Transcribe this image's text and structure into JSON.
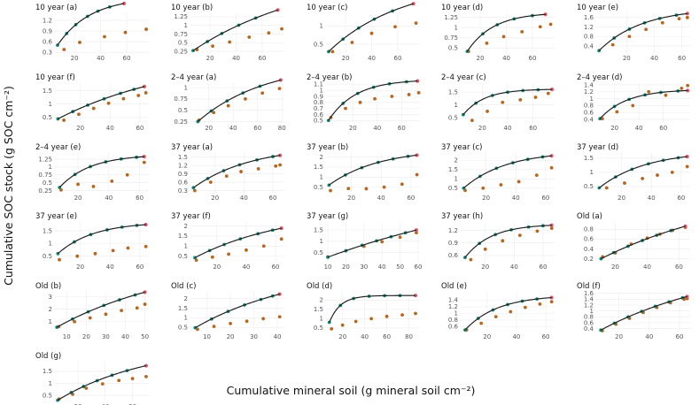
{
  "figure": {
    "ylabel": "Cumulative SOC stock (g SOC  cm⁻²)",
    "xlabel": "Cumulative mineral soil (g mineral soil cm⁻²)"
  },
  "colors": {
    "fitted_line": "#1a1a1a",
    "teal_points": "#138a78",
    "orange_points": "#b8651e",
    "red_endpoint": "#e05a6a",
    "grid": "#ececec"
  },
  "chart_data": [
    {
      "title": "10 year (a)",
      "type": "scatter",
      "xticks": [
        20,
        40,
        60
      ],
      "yticks": [
        0.3,
        0.6,
        0.9,
        1.2
      ],
      "xlim": [
        5,
        77
      ],
      "ylim": [
        0.28,
        1.4
      ],
      "curve": {
        "a": 1.35,
        "b": 0.04,
        "c": 0.5,
        "x0": 7
      },
      "teal_x": [
        7,
        14,
        21,
        30,
        38,
        47,
        58
      ],
      "orange_x": [
        12,
        24,
        43,
        59,
        75
      ],
      "orange_y": [
        0.38,
        0.58,
        0.74,
        0.86,
        0.95
      ]
    },
    {
      "title": "10 year (b)",
      "type": "scatter",
      "xticks": [
        20,
        40,
        60
      ],
      "yticks": [
        0.25,
        0.5,
        0.75,
        1.0,
        1.25
      ],
      "xlim": [
        5,
        77
      ],
      "ylim": [
        0.2,
        1.35
      ],
      "curve": {
        "a": 2.3,
        "b": 0.011,
        "c": 0.27,
        "x0": 7
      },
      "teal_x": [
        7,
        18,
        29,
        42,
        55,
        72
      ],
      "orange_x": [
        10,
        22,
        35,
        50,
        65,
        75
      ],
      "orange_y": [
        0.3,
        0.4,
        0.52,
        0.66,
        0.78,
        0.9
      ]
    },
    {
      "title": "10 year (c)",
      "type": "scatter",
      "xticks": [
        20,
        40,
        60
      ],
      "yticks": [
        0.5,
        1.0
      ],
      "xlim": [
        5,
        77
      ],
      "ylim": [
        0.26,
        1.35
      ],
      "curve": {
        "a": 1.9,
        "b": 0.018,
        "c": 0.3,
        "x0": 7
      },
      "teal_x": [
        7,
        18,
        30,
        42,
        56,
        72
      ],
      "orange_x": [
        10,
        25,
        40,
        58,
        74
      ],
      "orange_y": [
        0.3,
        0.55,
        0.8,
        0.98,
        1.08
      ]
    },
    {
      "title": "10 year (d)",
      "type": "scatter",
      "xticks": [
        20,
        40,
        60
      ],
      "yticks": [
        0.5,
        0.75,
        1.0,
        1.25
      ],
      "xlim": [
        5,
        77
      ],
      "ylim": [
        0.38,
        1.35
      ],
      "curve": {
        "a": 0.95,
        "b": 0.05,
        "c": 0.42,
        "x0": 10
      },
      "teal_x": [
        10,
        22,
        33,
        46,
        60,
        70
      ],
      "orange_x": [
        11,
        25,
        38,
        52,
        66,
        74
      ],
      "orange_y": [
        0.42,
        0.62,
        0.78,
        0.9,
        1.02,
        1.08
      ]
    },
    {
      "title": "10 year (e)",
      "type": "scatter",
      "xticks": [
        20,
        40,
        60
      ],
      "yticks": [
        0.4,
        0.8,
        1.2,
        1.6
      ],
      "xlim": [
        -2,
        66
      ],
      "ylim": [
        0.1,
        1.78
      ],
      "curve": {
        "a": 1.8,
        "b": 0.032,
        "c": 0.2,
        "x0": 0
      },
      "teal_x": [
        0,
        11,
        22,
        33,
        44,
        56,
        64
      ],
      "orange_x": [
        10,
        22,
        34,
        46,
        58,
        64
      ],
      "orange_y": [
        0.45,
        0.8,
        1.1,
        1.38,
        1.55,
        1.6
      ]
    },
    {
      "title": "10 year (f)",
      "type": "scatter",
      "xticks": [
        20,
        40,
        60
      ],
      "yticks": [
        0.5,
        1.0,
        1.5
      ],
      "xlim": [
        3,
        66
      ],
      "ylim": [
        0.3,
        1.78
      ],
      "curve": {
        "a": 2.4,
        "b": 0.012,
        "c": 0.45,
        "x0": 5
      },
      "teal_x": [
        5,
        15,
        25,
        36,
        47,
        56,
        63
      ],
      "orange_x": [
        9,
        19,
        29,
        39,
        49,
        59,
        64
      ],
      "orange_y": [
        0.4,
        0.62,
        0.84,
        1.03,
        1.2,
        1.32,
        1.42
      ]
    },
    {
      "title": "2–4 year (a)",
      "type": "scatter",
      "xticks": [
        20,
        40,
        60,
        80
      ],
      "yticks": [
        0.25,
        0.5,
        0.75,
        1.0
      ],
      "xlim": [
        5,
        82
      ],
      "ylim": [
        0.22,
        1.1
      ],
      "curve": {
        "a": 1.3,
        "b": 0.018,
        "c": 0.25,
        "x0": 11
      },
      "teal_x": [
        11,
        22,
        35,
        48,
        62,
        79
      ],
      "orange_x": [
        12,
        24,
        36,
        50,
        64,
        78
      ],
      "orange_y": [
        0.28,
        0.45,
        0.6,
        0.75,
        0.88,
        0.98
      ]
    },
    {
      "title": "2–4 year (b)",
      "type": "scatter",
      "xticks": [
        20,
        40,
        60
      ],
      "yticks": [
        0.5,
        0.6,
        0.7,
        0.8,
        0.9,
        1.0,
        1.1
      ],
      "xlim": [
        -2,
        75
      ],
      "ylim": [
        0.46,
        1.12
      ],
      "curve": {
        "a": 0.68,
        "b": 0.045,
        "c": 0.5,
        "x0": 0
      },
      "teal_x": [
        0,
        12,
        24,
        37,
        50,
        64,
        73
      ],
      "orange_x": [
        2,
        14,
        26,
        38,
        52,
        66,
        74
      ],
      "orange_y": [
        0.55,
        0.7,
        0.8,
        0.86,
        0.9,
        0.93,
        0.96
      ]
    },
    {
      "title": "2–4 year (c)",
      "type": "scatter",
      "xticks": [
        20,
        40,
        60
      ],
      "yticks": [
        0.5,
        1.0,
        1.5
      ],
      "xlim": [
        3,
        77
      ],
      "ylim": [
        0.3,
        1.85
      ],
      "curve": {
        "a": 1.0,
        "b": 0.06,
        "c": 0.62,
        "x0": 5
      },
      "teal_x": [
        5,
        15,
        28,
        40,
        52,
        64,
        75
      ],
      "orange_x": [
        12,
        24,
        36,
        50,
        62,
        72
      ],
      "orange_y": [
        0.4,
        0.75,
        1.1,
        1.2,
        1.3,
        1.45
      ]
    },
    {
      "title": "2–4 year (d)",
      "type": "scatter",
      "xticks": [
        20,
        40,
        60
      ],
      "yticks": [
        0.4,
        0.6,
        0.8,
        1.0,
        1.2,
        1.4
      ],
      "xlim": [
        5,
        82
      ],
      "ylim": [
        0.3,
        1.45
      ],
      "curve": {
        "a": 0.85,
        "b": 0.045,
        "c": 0.42,
        "x0": 8
      },
      "teal_x": [
        8,
        20,
        32,
        45,
        58,
        72,
        80
      ],
      "orange_x": [
        10,
        22,
        35,
        48,
        62,
        75,
        80
      ],
      "orange_y": [
        0.42,
        0.62,
        0.8,
        1.2,
        1.1,
        1.3,
        1.38
      ]
    },
    {
      "title": "2–4 year (e)",
      "type": "scatter",
      "xticks": [
        20,
        40,
        60
      ],
      "yticks": [
        0.25,
        0.5,
        0.75,
        1.0,
        1.25
      ],
      "xlim": [
        5,
        66
      ],
      "ylim": [
        0.18,
        1.45
      ],
      "curve": {
        "a": 1.05,
        "b": 0.05,
        "c": 0.35,
        "x0": 8
      },
      "teal_x": [
        8,
        18,
        28,
        38,
        48,
        58,
        63
      ],
      "orange_x": [
        9,
        20,
        30,
        42,
        52,
        63
      ],
      "orange_y": [
        0.27,
        0.45,
        0.38,
        0.55,
        0.75,
        1.15
      ]
    },
    {
      "title": "37 year (a)",
      "type": "scatter",
      "xticks": [
        20,
        40,
        60
      ],
      "yticks": [
        0.3,
        0.6,
        0.9,
        1.2,
        1.5
      ],
      "xlim": [
        3,
        68
      ],
      "ylim": [
        0.22,
        1.65
      ],
      "curve": {
        "a": 1.5,
        "b": 0.025,
        "c": 0.4,
        "x0": 5
      },
      "teal_x": [
        5,
        15,
        26,
        37,
        49,
        60,
        65
      ],
      "orange_x": [
        6,
        17,
        28,
        38,
        50,
        62,
        65
      ],
      "orange_y": [
        0.3,
        0.6,
        0.82,
        0.98,
        1.08,
        1.18,
        1.22
      ]
    },
    {
      "title": "37 year (b)",
      "type": "scatter",
      "xticks": [
        20,
        40,
        60
      ],
      "yticks": [
        0.5,
        1.0,
        1.5,
        2.0
      ],
      "xlim": [
        3,
        66
      ],
      "ylim": [
        0.22,
        2.2
      ],
      "curve": {
        "a": 1.8,
        "b": 0.03,
        "c": 0.6,
        "x0": 5
      },
      "teal_x": [
        5,
        16,
        27,
        38,
        48,
        58,
        64
      ],
      "orange_x": [
        6,
        18,
        30,
        42,
        54,
        64
      ],
      "orange_y": [
        0.33,
        0.43,
        0.42,
        0.5,
        0.65,
        1.12
      ]
    },
    {
      "title": "37 year (c)",
      "type": "scatter",
      "xticks": [
        20,
        40,
        60
      ],
      "yticks": [
        0.5,
        1.0,
        1.5,
        2.0
      ],
      "xlim": [
        3,
        66
      ],
      "ylim": [
        0.25,
        2.4
      ],
      "curve": {
        "a": 2.0,
        "b": 0.035,
        "c": 0.5,
        "x0": 5
      },
      "teal_x": [
        5,
        16,
        27,
        38,
        48,
        58,
        64
      ],
      "orange_x": [
        6,
        18,
        30,
        42,
        54,
        64
      ],
      "orange_y": [
        0.38,
        0.5,
        0.68,
        0.85,
        1.2,
        1.6
      ]
    },
    {
      "title": "37 year (d)",
      "type": "scatter",
      "xticks": [
        20,
        40,
        60
      ],
      "yticks": [
        0.5,
        1.0,
        1.5
      ],
      "xlim": [
        3,
        66
      ],
      "ylim": [
        0.28,
        1.68
      ],
      "curve": {
        "a": 1.3,
        "b": 0.032,
        "c": 0.45,
        "x0": 5
      },
      "teal_x": [
        5,
        16,
        27,
        38,
        48,
        58,
        64
      ],
      "orange_x": [
        10,
        22,
        34,
        44,
        54,
        64
      ],
      "orange_y": [
        0.45,
        0.62,
        0.78,
        0.9,
        1.0,
        1.2
      ]
    },
    {
      "title": "37 year (e)",
      "type": "scatter",
      "xticks": [
        20,
        40,
        60
      ],
      "yticks": [
        0.5,
        1.0,
        1.5
      ],
      "xlim": [
        3,
        66
      ],
      "ylim": [
        0.28,
        1.85
      ],
      "curve": {
        "a": 1.25,
        "b": 0.042,
        "c": 0.6,
        "x0": 5
      },
      "teal_x": [
        5,
        16,
        27,
        38,
        48,
        58,
        64
      ],
      "orange_x": [
        6,
        18,
        30,
        42,
        52,
        64
      ],
      "orange_y": [
        0.36,
        0.5,
        0.6,
        0.72,
        0.82,
        0.88
      ]
    },
    {
      "title": "37 year (f)",
      "type": "scatter",
      "xticks": [
        20,
        40,
        60
      ],
      "yticks": [
        0.5,
        1.0,
        1.5,
        2.0
      ],
      "xlim": [
        2,
        66
      ],
      "ylim": [
        0.22,
        2.2
      ],
      "curve": {
        "a": 2.4,
        "b": 0.016,
        "c": 0.42,
        "x0": 5
      },
      "teal_x": [
        5,
        15,
        25,
        36,
        48,
        58,
        64
      ],
      "orange_x": [
        6,
        17,
        28,
        40,
        52,
        64
      ],
      "orange_y": [
        0.3,
        0.45,
        0.6,
        0.8,
        1.0,
        1.35
      ]
    },
    {
      "title": "37 year (g)",
      "type": "scatter",
      "xticks": [
        10,
        20,
        30,
        40,
        50,
        60
      ],
      "yticks": [
        0.5,
        1.0,
        1.5
      ],
      "xlim": [
        9,
        61
      ],
      "ylim": [
        0.1,
        1.85
      ],
      "curve": {
        "a": 3.5,
        "b": 0.0085,
        "c": 0.3,
        "x0": 10
      },
      "teal_x": [
        10,
        20,
        29,
        37,
        45,
        53,
        59
      ],
      "orange_x": [
        10,
        20,
        30,
        40,
        50,
        59
      ],
      "orange_y": [
        0.32,
        0.58,
        0.78,
        0.98,
        1.18,
        1.38
      ]
    },
    {
      "title": "37 year (h)",
      "type": "scatter",
      "xticks": [
        20,
        40,
        60
      ],
      "yticks": [
        0.6,
        0.9,
        1.2
      ],
      "xlim": [
        3,
        68
      ],
      "ylim": [
        0.45,
        1.4
      ],
      "curve": {
        "a": 0.8,
        "b": 0.055,
        "c": 0.55,
        "x0": 6
      },
      "teal_x": [
        6,
        16,
        27,
        38,
        50,
        60,
        66
      ],
      "orange_x": [
        10,
        20,
        32,
        44,
        56,
        66
      ],
      "orange_y": [
        0.5,
        0.75,
        0.95,
        1.08,
        1.18,
        1.25
      ]
    },
    {
      "title": "Old (a)",
      "type": "scatter",
      "xticks": [
        20,
        40,
        60
      ],
      "yticks": [
        0.2,
        0.4,
        0.6,
        0.8
      ],
      "xlim": [
        8,
        67
      ],
      "ylim": [
        0.14,
        0.95
      ],
      "curve": {
        "a": 1.5,
        "b": 0.011,
        "c": 0.2,
        "x0": 11
      },
      "teal_x": [
        11,
        19,
        28,
        37,
        46,
        55,
        64
      ],
      "orange_x": [
        12,
        20,
        30,
        40,
        48,
        56,
        64
      ],
      "orange_y": [
        0.24,
        0.32,
        0.5,
        0.62,
        0.7,
        0.78,
        0.84
      ]
    },
    {
      "title": "Old (b)",
      "type": "scatter",
      "xticks": [
        10,
        20,
        30,
        40,
        50
      ],
      "yticks": [
        1,
        2,
        3
      ],
      "xlim": [
        4,
        52
      ],
      "ylim": [
        0.2,
        3.4
      ],
      "curve": {
        "a": 5.5,
        "b": 0.016,
        "c": 0.55,
        "x0": 5
      },
      "teal_x": [
        5,
        13,
        21,
        29,
        37,
        45,
        50
      ],
      "orange_x": [
        6,
        14,
        22,
        30,
        38,
        46,
        50
      ],
      "orange_y": [
        0.6,
        1.0,
        1.3,
        1.6,
        1.9,
        2.1,
        2.4
      ]
    },
    {
      "title": "Old (c)",
      "type": "scatter",
      "xticks": [
        10,
        20,
        30,
        40
      ],
      "yticks": [
        0.5,
        1.0,
        1.5,
        2.0
      ],
      "xlim": [
        3,
        43
      ],
      "ylim": [
        0.28,
        2.35
      ],
      "curve": {
        "a": 3.2,
        "b": 0.022,
        "c": 0.48,
        "x0": 5
      },
      "teal_x": [
        5,
        12,
        19,
        26,
        33,
        38,
        41
      ],
      "orange_x": [
        6,
        13,
        20,
        27,
        34,
        41
      ],
      "orange_y": [
        0.4,
        0.55,
        0.7,
        0.82,
        0.95,
        1.05
      ]
    },
    {
      "title": "Old (d)",
      "type": "scatter",
      "xticks": [
        20,
        40,
        60,
        80
      ],
      "yticks": [
        0.5,
        1.0,
        1.5,
        2.0
      ],
      "xlim": [
        5,
        90
      ],
      "ylim": [
        0.3,
        2.45
      ],
      "curve": {
        "a": 1.45,
        "b": 0.1,
        "c": 0.8,
        "x0": 8
      },
      "teal_x": [
        8,
        18,
        30,
        44,
        58,
        72,
        86
      ],
      "orange_x": [
        10,
        20,
        32,
        46,
        60,
        74,
        86
      ],
      "orange_y": [
        0.45,
        0.65,
        0.85,
        1.0,
        1.12,
        1.2,
        1.28
      ]
    },
    {
      "title": "Old (e)",
      "type": "scatter",
      "xticks": [
        20,
        40,
        60
      ],
      "yticks": [
        0.6,
        0.8,
        1.0,
        1.2,
        1.4
      ],
      "xlim": [
        2,
        66
      ],
      "ylim": [
        0.45,
        1.65
      ],
      "curve": {
        "a": 1.05,
        "b": 0.045,
        "c": 0.5,
        "x0": 5
      },
      "teal_x": [
        5,
        14,
        24,
        34,
        44,
        54,
        64
      ],
      "orange_x": [
        6,
        16,
        26,
        36,
        46,
        56,
        64
      ],
      "orange_y": [
        0.5,
        0.7,
        0.9,
        1.05,
        1.18,
        1.28,
        1.35
      ]
    },
    {
      "title": "Old (f)",
      "type": "scatter",
      "xticks": [
        20,
        40,
        60
      ],
      "yticks": [
        0.4,
        0.6,
        0.8,
        1.0,
        1.2,
        1.4,
        1.6
      ],
      "xlim": [
        5,
        67
      ],
      "ylim": [
        0.3,
        1.65
      ],
      "curve": {
        "a": 2.3,
        "b": 0.012,
        "c": 0.35,
        "x0": 8
      },
      "teal_x": [
        8,
        17,
        26,
        35,
        44,
        53,
        62,
        65
      ],
      "orange_x": [
        9,
        18,
        27,
        36,
        45,
        54,
        63,
        65
      ],
      "orange_y": [
        0.33,
        0.55,
        0.75,
        0.95,
        1.12,
        1.28,
        1.4,
        1.42
      ]
    },
    {
      "title": "Old (g)",
      "type": "scatter",
      "xticks": [
        20,
        40,
        60
      ],
      "yticks": [
        0.5,
        1.0,
        1.5
      ],
      "xlim": [
        3,
        72
      ],
      "ylim": [
        0.25,
        1.9
      ],
      "curve": {
        "a": 2.3,
        "b": 0.015,
        "c": 0.3,
        "x0": 5
      },
      "teal_x": [
        5,
        15,
        24,
        34,
        45,
        56,
        70
      ],
      "orange_x": [
        6,
        16,
        26,
        38,
        50,
        60,
        70
      ],
      "orange_y": [
        0.35,
        0.55,
        0.8,
        0.98,
        1.12,
        1.2,
        1.28
      ]
    }
  ]
}
